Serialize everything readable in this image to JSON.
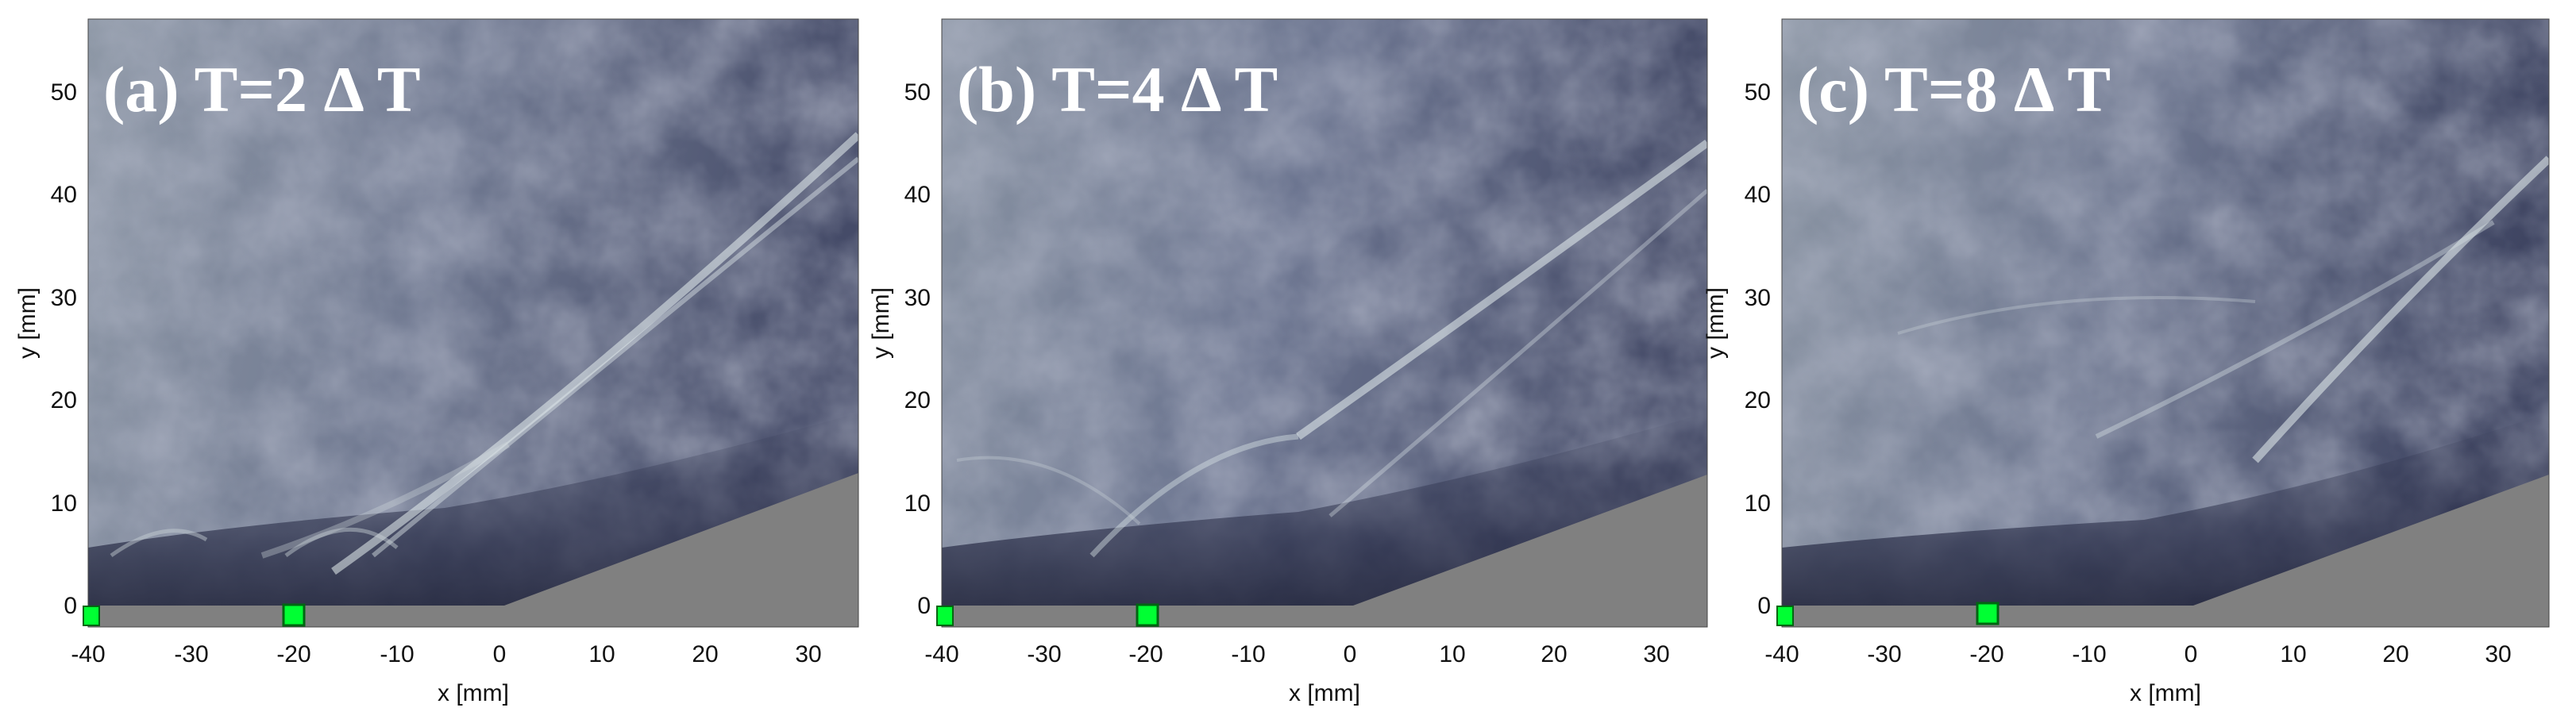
{
  "figure": {
    "x_axis_label": "x [mm]",
    "y_axis_label": "y [mm]",
    "x_ticks": [
      "-40",
      "-30",
      "-20",
      "-10",
      "0",
      "10",
      "20",
      "30"
    ],
    "y_ticks": [
      "0",
      "10",
      "20",
      "30",
      "40",
      "50"
    ],
    "x_range": [
      -40,
      35
    ],
    "y_range": [
      -2,
      57
    ],
    "colors": {
      "wall": "#808080",
      "marker": "#00ff33",
      "background_tone": "#5b6177"
    },
    "panels": [
      {
        "title": "(a) T=2 Δ T",
        "marker_x": [
          -40,
          -20
        ]
      },
      {
        "title": "(b) T=4 Δ T",
        "marker_x": [
          -40,
          -20
        ]
      },
      {
        "title": "(c) T=8 Δ T",
        "marker_x": [
          -40,
          -20
        ]
      }
    ]
  }
}
